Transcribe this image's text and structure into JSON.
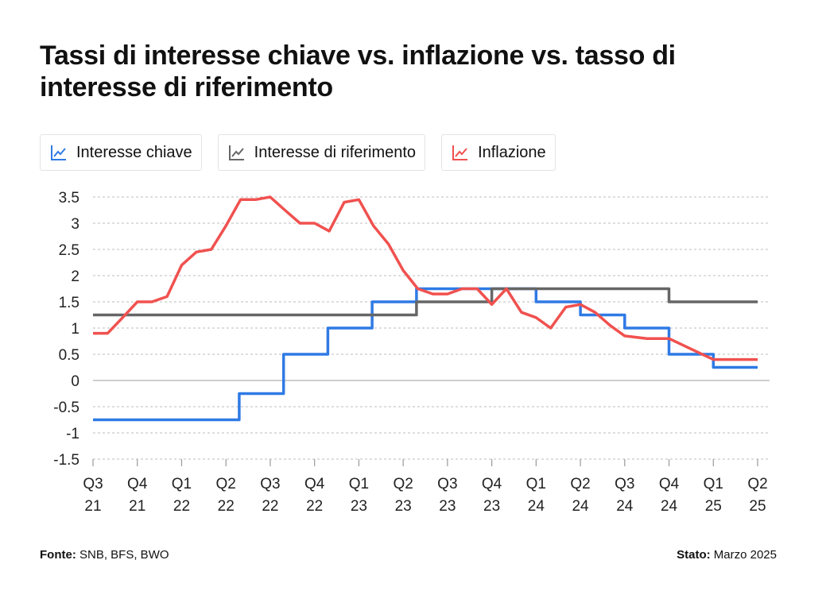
{
  "title": "Tassi di interesse chiave vs. inflazione vs. tasso di interesse di riferimento",
  "legend": [
    {
      "label": "Interesse chiave",
      "color": "#2f7ae5",
      "icon": "line-chart-icon"
    },
    {
      "label": "Interesse di riferimento",
      "color": "#666666",
      "icon": "line-chart-icon"
    },
    {
      "label": "Inflazione",
      "color": "#f0514f",
      "icon": "line-chart-icon"
    }
  ],
  "footer": {
    "source_label": "Fonte:",
    "source_value": "SNB, BFS, BWO",
    "status_label": "Stato:",
    "status_value": "Marzo 2025"
  },
  "chart_data": {
    "type": "line",
    "x_ticks": [
      "Q3 21",
      "Q4 21",
      "Q1 22",
      "Q2 22",
      "Q3 22",
      "Q4 22",
      "Q1 23",
      "Q2 23",
      "Q3 23",
      "Q4 23",
      "Q1 24",
      "Q2 24",
      "Q3 24",
      "Q4 24",
      "Q1 25",
      "Q2 25"
    ],
    "x_tick_lines": [
      [
        "Q3",
        "21"
      ],
      [
        "Q4",
        "21"
      ],
      [
        "Q1",
        "22"
      ],
      [
        "Q2",
        "22"
      ],
      [
        "Q3",
        "22"
      ],
      [
        "Q4",
        "22"
      ],
      [
        "Q1",
        "23"
      ],
      [
        "Q2",
        "23"
      ],
      [
        "Q3",
        "23"
      ],
      [
        "Q4",
        "23"
      ],
      [
        "Q1",
        "24"
      ],
      [
        "Q2",
        "24"
      ],
      [
        "Q3",
        "24"
      ],
      [
        "Q4",
        "24"
      ],
      [
        "Q1",
        "25"
      ],
      [
        "Q2",
        "25"
      ]
    ],
    "ylim": [
      -1.5,
      3.5
    ],
    "y_ticks": [
      3.5,
      3,
      2.5,
      2,
      1.5,
      1,
      0.5,
      0,
      -0.5,
      -1,
      -1.5
    ],
    "y_tick_labels": [
      "3.5",
      "3",
      "2.5",
      "2",
      "1.5",
      "1",
      "0.5",
      "0",
      "-0.5",
      "-1",
      "-1.5"
    ],
    "grid": true,
    "legend_position": "top-left",
    "series": [
      {
        "name": "Interesse chiave",
        "color": "#2f7ae5",
        "step": true,
        "points": [
          [
            0,
            -0.75
          ],
          [
            3.3,
            -0.75
          ],
          [
            3.3,
            -0.25
          ],
          [
            4.3,
            -0.25
          ],
          [
            4.3,
            0.5
          ],
          [
            5.3,
            0.5
          ],
          [
            5.3,
            1.0
          ],
          [
            6.3,
            1.0
          ],
          [
            6.3,
            1.5
          ],
          [
            7.3,
            1.5
          ],
          [
            7.3,
            1.75
          ],
          [
            10.0,
            1.75
          ],
          [
            10.0,
            1.5
          ],
          [
            11.0,
            1.5
          ],
          [
            11.0,
            1.25
          ],
          [
            12.0,
            1.25
          ],
          [
            12.0,
            1.0
          ],
          [
            13.0,
            1.0
          ],
          [
            13.0,
            0.5
          ],
          [
            14.0,
            0.5
          ],
          [
            14.0,
            0.25
          ],
          [
            15.0,
            0.25
          ]
        ]
      },
      {
        "name": "Interesse di riferimento",
        "color": "#666666",
        "step": true,
        "points": [
          [
            0,
            1.25
          ],
          [
            7.3,
            1.25
          ],
          [
            7.3,
            1.5
          ],
          [
            9.0,
            1.5
          ],
          [
            9.0,
            1.75
          ],
          [
            13.0,
            1.75
          ],
          [
            13.0,
            1.5
          ],
          [
            15.0,
            1.5
          ]
        ]
      },
      {
        "name": "Inflazione",
        "color": "#f0514f",
        "step": false,
        "points": [
          [
            0,
            0.9
          ],
          [
            0.33,
            0.9
          ],
          [
            0.67,
            1.2
          ],
          [
            1.0,
            1.5
          ],
          [
            1.33,
            1.5
          ],
          [
            1.67,
            1.6
          ],
          [
            2.0,
            2.2
          ],
          [
            2.33,
            2.45
          ],
          [
            2.67,
            2.5
          ],
          [
            3.0,
            2.95
          ],
          [
            3.33,
            3.45
          ],
          [
            3.67,
            3.45
          ],
          [
            4.0,
            3.5
          ],
          [
            4.33,
            3.25
          ],
          [
            4.67,
            3.0
          ],
          [
            5.0,
            3.0
          ],
          [
            5.33,
            2.85
          ],
          [
            5.67,
            3.4
          ],
          [
            6.0,
            3.45
          ],
          [
            6.33,
            2.95
          ],
          [
            6.67,
            2.6
          ],
          [
            7.0,
            2.1
          ],
          [
            7.33,
            1.75
          ],
          [
            7.67,
            1.65
          ],
          [
            8.0,
            1.65
          ],
          [
            8.33,
            1.75
          ],
          [
            8.67,
            1.75
          ],
          [
            9.0,
            1.45
          ],
          [
            9.33,
            1.75
          ],
          [
            9.67,
            1.3
          ],
          [
            10.0,
            1.2
          ],
          [
            10.33,
            1.0
          ],
          [
            10.67,
            1.4
          ],
          [
            11.0,
            1.45
          ],
          [
            11.33,
            1.3
          ],
          [
            11.67,
            1.05
          ],
          [
            12.0,
            0.85
          ],
          [
            12.5,
            0.8
          ],
          [
            13.0,
            0.8
          ],
          [
            13.5,
            0.6
          ],
          [
            14.0,
            0.4
          ],
          [
            14.5,
            0.4
          ],
          [
            15.0,
            0.4
          ]
        ]
      }
    ]
  }
}
